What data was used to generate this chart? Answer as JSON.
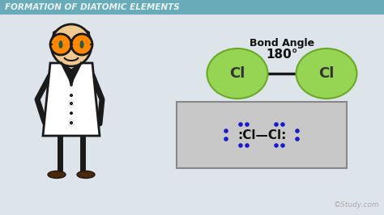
{
  "title": "FORMATION OF DIATOMIC ELEMENTS",
  "title_color": "#e8f4f4",
  "title_bg": "#6aabba",
  "bg_color": "#dde4ea",
  "bond_angle_label": "Bond Angle",
  "bond_angle_value": "180°",
  "element_symbol": "Cl",
  "cl_color": "#96d454",
  "cl_border": "#6aaa28",
  "lewis_box_facecolor": "#c8c8c8",
  "lewis_box_edgecolor": "#888888",
  "lewis_text_color": "#1a1acc",
  "study_color": "#aaaaaa",
  "skin_color": "#f0c890",
  "hair_color": "#9a8868",
  "coat_color": "#ffffff",
  "dark_line": "#1a1a1a",
  "shoe_color": "#4a2808"
}
